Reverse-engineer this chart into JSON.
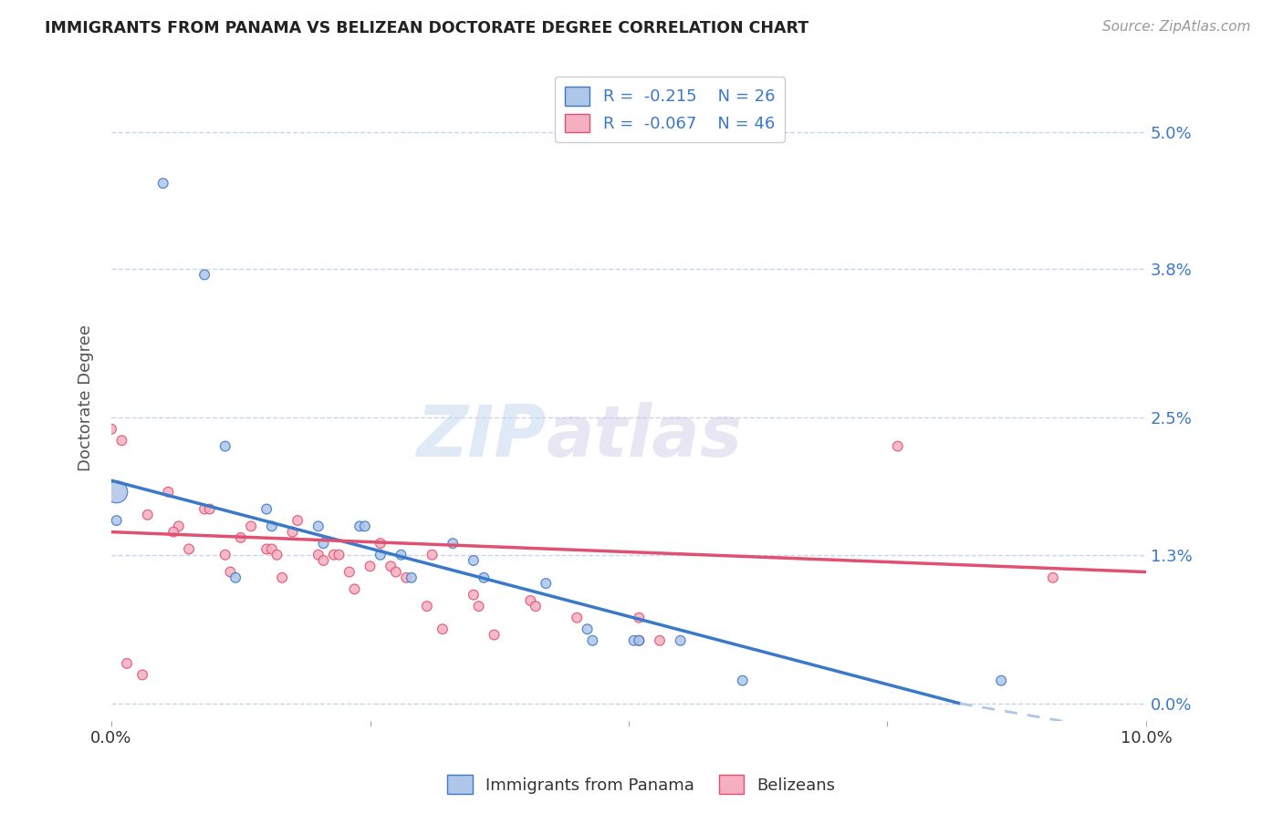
{
  "title": "IMMIGRANTS FROM PANAMA VS BELIZEAN DOCTORATE DEGREE CORRELATION CHART",
  "source": "Source: ZipAtlas.com",
  "ylabel": "Doctorate Degree",
  "ytick_values": [
    0.0,
    1.3,
    2.5,
    3.8,
    5.0
  ],
  "xlim": [
    0.0,
    10.0
  ],
  "ylim": [
    -0.15,
    5.5
  ],
  "legend_panama_r": "-0.215",
  "legend_panama_n": "26",
  "legend_belize_r": "-0.067",
  "legend_belize_n": "46",
  "legend_labels": [
    "Immigrants from Panama",
    "Belizeans"
  ],
  "panama_color": "#aec6e8",
  "belize_color": "#f4afc0",
  "trendline_panama_color": "#3a78c9",
  "trendline_belize_color": "#e05070",
  "background_color": "#ffffff",
  "grid_color": "#c8d4e8",
  "panama_scatter": {
    "x": [
      0.05,
      0.05,
      0.5,
      0.9,
      1.1,
      1.5,
      1.55,
      2.0,
      2.05,
      2.4,
      2.45,
      2.6,
      2.8,
      3.3,
      3.5,
      3.6,
      4.2,
      4.6,
      4.65,
      5.05,
      5.5,
      6.1,
      8.6,
      1.2,
      2.9,
      5.1
    ],
    "y": [
      1.85,
      1.6,
      4.55,
      3.75,
      2.25,
      1.7,
      1.55,
      1.55,
      1.4,
      1.55,
      1.55,
      1.3,
      1.3,
      1.4,
      1.25,
      1.1,
      1.05,
      0.65,
      0.55,
      0.55,
      0.55,
      0.2,
      0.2,
      1.1,
      1.1,
      0.55
    ],
    "sizes": [
      300,
      60,
      60,
      60,
      60,
      60,
      60,
      60,
      60,
      60,
      60,
      60,
      60,
      60,
      60,
      60,
      60,
      60,
      60,
      60,
      60,
      60,
      60,
      60,
      60,
      60
    ]
  },
  "belize_scatter": {
    "x": [
      0.0,
      0.1,
      0.35,
      0.55,
      0.65,
      0.75,
      0.9,
      0.95,
      1.1,
      1.15,
      1.25,
      1.35,
      1.5,
      1.55,
      1.6,
      1.65,
      1.75,
      1.8,
      2.0,
      2.05,
      2.15,
      2.2,
      2.3,
      2.35,
      2.5,
      2.6,
      2.7,
      2.75,
      2.85,
      3.05,
      3.1,
      3.2,
      3.5,
      3.55,
      3.7,
      4.05,
      4.1,
      4.5,
      5.1,
      5.1,
      5.3,
      7.6,
      9.1,
      0.15,
      0.3,
      0.6
    ],
    "y": [
      2.4,
      2.3,
      1.65,
      1.85,
      1.55,
      1.35,
      1.7,
      1.7,
      1.3,
      1.15,
      1.45,
      1.55,
      1.35,
      1.35,
      1.3,
      1.1,
      1.5,
      1.6,
      1.3,
      1.25,
      1.3,
      1.3,
      1.15,
      1.0,
      1.2,
      1.4,
      1.2,
      1.15,
      1.1,
      0.85,
      1.3,
      0.65,
      0.95,
      0.85,
      0.6,
      0.9,
      0.85,
      0.75,
      0.75,
      0.55,
      0.55,
      2.25,
      1.1,
      0.35,
      0.25,
      1.5
    ],
    "sizes": [
      60,
      60,
      60,
      60,
      60,
      60,
      60,
      60,
      60,
      60,
      60,
      60,
      60,
      60,
      60,
      60,
      60,
      60,
      60,
      60,
      60,
      60,
      60,
      60,
      60,
      60,
      60,
      60,
      60,
      60,
      60,
      60,
      60,
      60,
      60,
      60,
      60,
      60,
      60,
      60,
      60,
      60,
      60,
      60,
      60,
      60
    ]
  },
  "trendline_panama_solid": {
    "x": [
      0.0,
      8.2
    ],
    "y": [
      1.95,
      0.0
    ]
  },
  "trendline_panama_dashed": {
    "x": [
      8.2,
      10.0
    ],
    "y": [
      0.0,
      -0.28
    ]
  },
  "trendline_belize": {
    "x": [
      0.0,
      10.0
    ],
    "y": [
      1.5,
      1.15
    ]
  }
}
